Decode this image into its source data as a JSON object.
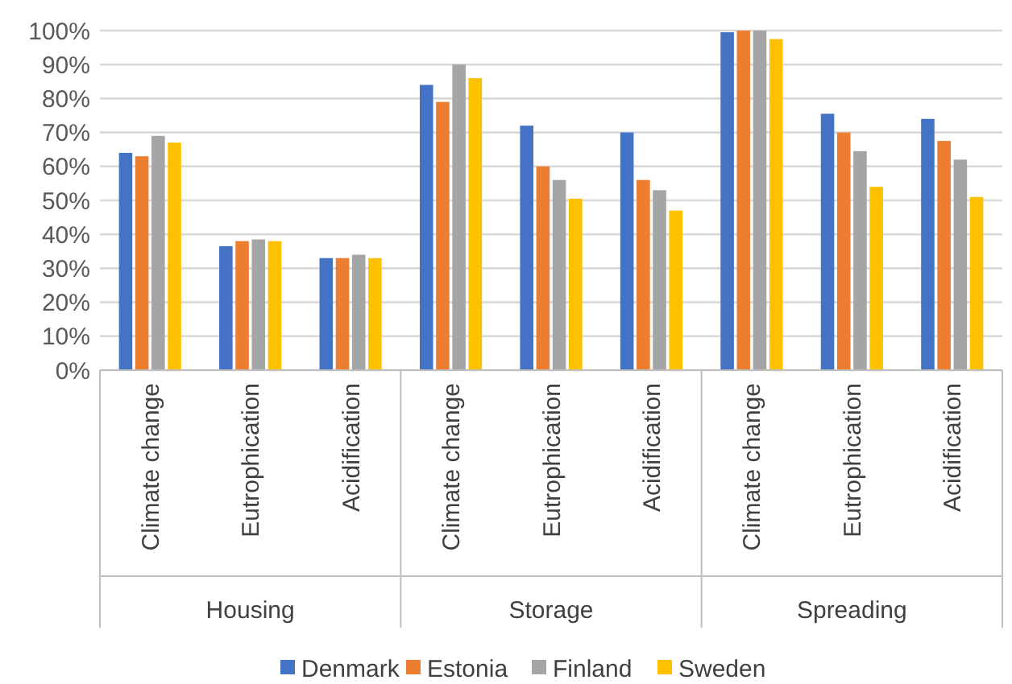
{
  "chart_data": {
    "type": "bar",
    "categories": [
      "Climate change",
      "Eutrophication",
      "Acidification",
      "Climate change",
      "Eutrophication",
      "Acidification",
      "Climate change",
      "Eutrophication",
      "Acidification"
    ],
    "annotations": [
      "Housing",
      "Storage",
      "Spreading"
    ],
    "series": [
      {
        "name": "Denmark",
        "color": "#4472c4",
        "values": [
          64,
          36.5,
          33,
          84,
          72,
          70,
          99.5,
          75.5,
          74
        ]
      },
      {
        "name": "Estonia",
        "color": "#ed7d31",
        "values": [
          63,
          38,
          33,
          79,
          60,
          56,
          100,
          70,
          67.5
        ]
      },
      {
        "name": "Finland",
        "color": "#a5a5a5",
        "values": [
          69,
          38.5,
          34,
          90,
          56,
          53,
          100,
          64.5,
          62
        ]
      },
      {
        "name": "Sweden",
        "color": "#ffc000",
        "values": [
          67,
          38,
          33,
          86,
          50.5,
          47,
          97.5,
          54,
          51
        ]
      }
    ],
    "ylim": [
      0,
      100
    ],
    "yticks": [
      {
        "value": 0,
        "label": "0%"
      },
      {
        "value": 10,
        "label": "10%"
      },
      {
        "value": 20,
        "label": "20%"
      },
      {
        "value": 30,
        "label": "30%"
      },
      {
        "value": 40,
        "label": "40%"
      },
      {
        "value": 50,
        "label": "50%"
      },
      {
        "value": 60,
        "label": "60%"
      },
      {
        "value": 70,
        "label": "70%"
      },
      {
        "value": 80,
        "label": "80%"
      },
      {
        "value": 90,
        "label": "90%"
      },
      {
        "value": 100,
        "label": "100%"
      }
    ],
    "grid": "y",
    "legend": "bottom"
  }
}
